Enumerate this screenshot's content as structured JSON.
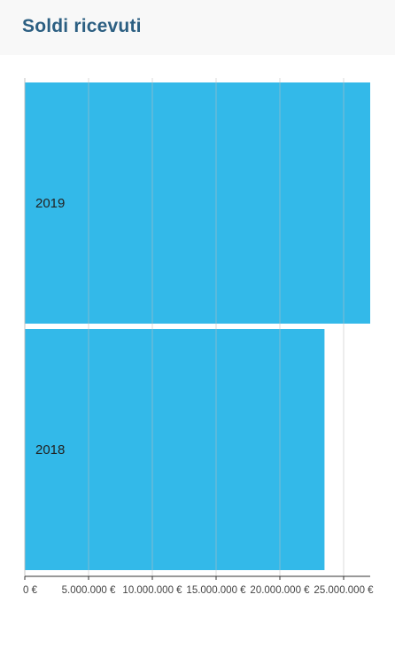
{
  "header": {
    "title": "Soldi ricevuti"
  },
  "chart_data": {
    "type": "bar",
    "orientation": "horizontal",
    "title": "Soldi ricevuti",
    "categories": [
      "2019",
      "2018"
    ],
    "values": [
      27100000,
      23500000
    ],
    "xlim": [
      0,
      27000000
    ],
    "x_ticks": [
      0,
      5000000,
      10000000,
      15000000,
      20000000,
      25000000
    ],
    "x_tick_labels": [
      "0 €",
      "5.000.000 €",
      "10.000.000 €",
      "15.000.000 €",
      "20.000.000 €",
      "25.000.000 €"
    ],
    "grid": true,
    "colors": {
      "bar": "#33b9e9",
      "grid": "#bdbdbd"
    }
  }
}
